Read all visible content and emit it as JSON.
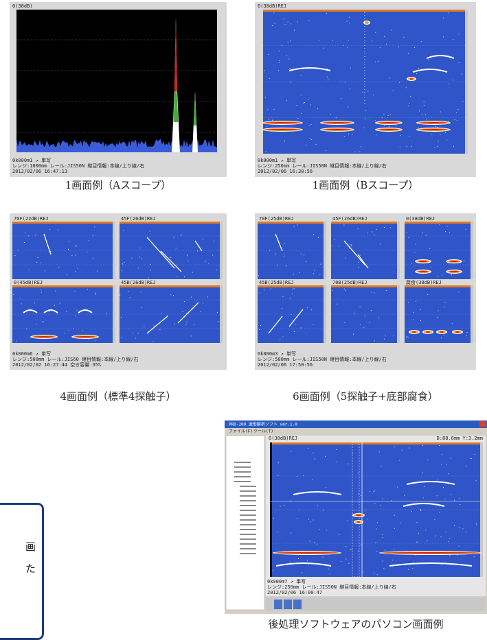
{
  "panels": [
    {
      "screens": [
        {
          "label": "0(38dB)"
        }
      ],
      "footer": [
        "0k000m1 ↗ 単写",
        "レンジ:1000mm  レール:JIS50N 継目情報:本線/上り線/右",
        "2012/02/06 16:47:13"
      ],
      "caption": "1画面例（Aスコープ）"
    },
    {
      "screens": [
        {
          "label": "0(38dB)REJ"
        }
      ],
      "footer": [
        "0k000m1 ↗ 単写",
        "レンジ:250mm   レール:JIS50N 継目情報:本線/上り線/右",
        "2012/02/06 16:30:56"
      ],
      "caption": "1画面例（Bスコープ）"
    },
    {
      "screens": [
        {
          "label": "70F(22dB)REJ"
        },
        {
          "label": "45F(26dB)REJ"
        },
        {
          "label": "0(45dB)REJ"
        },
        {
          "label": "45B(26dB)REJ"
        }
      ],
      "footer": [
        "0k000m6 ↗ 単写",
        "レンジ:500mm   レール:JIS60 継目情報:本線/上り線/右",
        "2012/02/02 16:27:44 空き容量:35%"
      ],
      "caption": "4画面例（標準4探触子）"
    },
    {
      "screens": [
        {
          "label": "70F(25dB)REJ"
        },
        {
          "label": "45F(26dB)REJ"
        },
        {
          "label": "0(38dB)REJ"
        },
        {
          "label": "45B(25dB)REJ"
        },
        {
          "label": "70B(25dB)REJ"
        },
        {
          "label": "腐食(38dB)REJ"
        }
      ],
      "footer": [
        "0k000m3 ↗ 単写",
        "レンジ:500mm   レール:JIS50N 継目情報:本線/上り線/右",
        "2012/02/06 17:50:56"
      ],
      "caption": "6画面例（5探触子+底部腐食）"
    }
  ],
  "software": {
    "window_title": "PRD-200 波形解析ソフト ver.1.0",
    "menu": [
      "ファイル(F)",
      "ツール(T)"
    ],
    "screen_label": "0(38dB)REJ",
    "cursor": "D:88.6mm Y:3.2mm",
    "footer": [
      "0k000m7 ↗ 単写",
      "レンジ:250mm   レール:JIS50N 継目情報:本線/上り線/右",
      "2012/02/06 16:00:47"
    ],
    "caption": "後処理ソフトウェアのパソコン画面例"
  },
  "note_box": {
    "lines": [
      "画",
      "た"
    ]
  }
}
